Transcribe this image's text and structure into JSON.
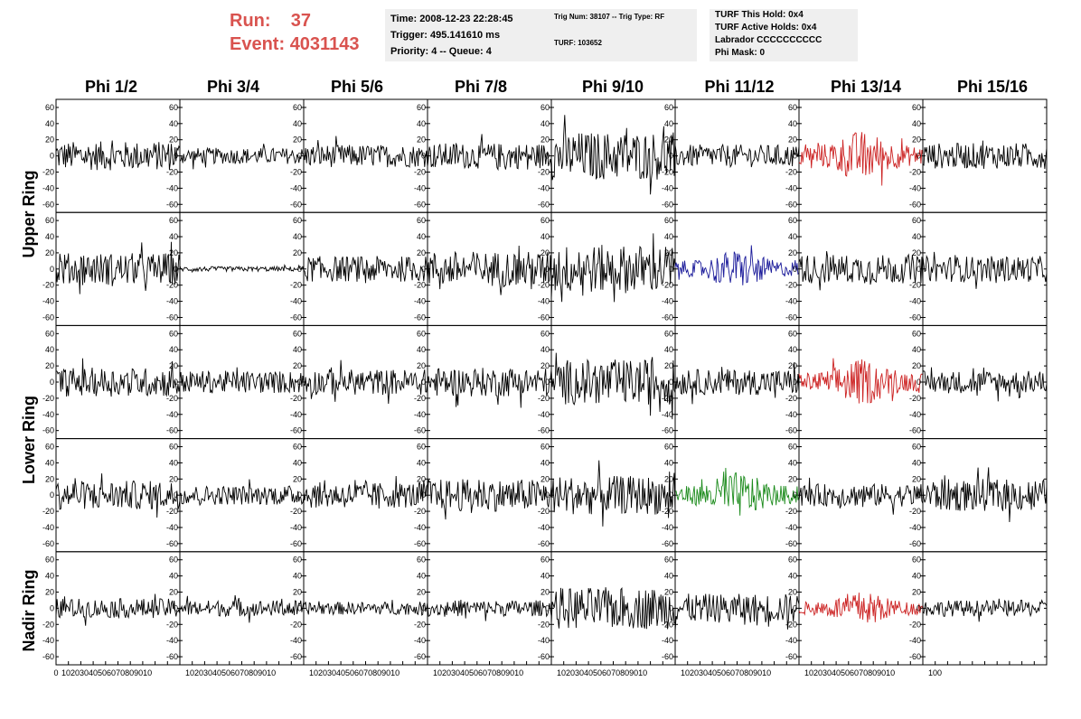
{
  "header": {
    "run_label": "Run:",
    "run_value": "37",
    "event_label": "Event:",
    "event_value": "4031143",
    "time": "Time: 2008-12-23 22:28:45",
    "trigger": "Trigger: 495.141610 ms",
    "priority": "Priority: 4 -- Queue: 4",
    "trig_num": "Trig Num: 38107 -- Trig Type: RF",
    "turf": "TURF: 103652",
    "turf_hold": "TURF This Hold: 0x4",
    "turf_active": "TURF Active Holds: 0x4",
    "labrador": "Labrador CCCCCCCCCC",
    "phi_mask": "Phi Mask: 0"
  },
  "columns": [
    "Phi 1/2",
    "Phi 3/4",
    "Phi 5/6",
    "Phi 7/8",
    "Phi 9/10",
    "Phi 11/12",
    "Phi 13/14",
    "Phi 15/16"
  ],
  "row_labels": [
    "Upper Ring",
    "Lower Ring",
    "Nadir Ring"
  ],
  "y_ticks": [
    "60",
    "40",
    "20",
    "0",
    "-20",
    "-40",
    "-60"
  ],
  "x_axis_labels": [
    "0",
    "10203040506070809010",
    "10203040506070809010",
    "10203040506070809010",
    "10203040506070809010",
    "10203040506070809010",
    "10203040506070809010",
    "10203040506070809010",
    "100"
  ],
  "colors": {
    "title": "#d9534f",
    "trace": "#000000",
    "highlight_red": "#cc2222",
    "highlight_blue": "#1a1a9a",
    "highlight_green": "#1a8a1a",
    "info_bg": "#efefef"
  },
  "chart_data": {
    "type": "line",
    "xlim": [
      0,
      100
    ],
    "ylim": [
      -70,
      70
    ],
    "grid": false,
    "rows": 5,
    "cols": 8,
    "amplitudes": [
      [
        18,
        10,
        14,
        16,
        30,
        14,
        24,
        16
      ],
      [
        20,
        3,
        16,
        22,
        30,
        18,
        18,
        16
      ],
      [
        18,
        14,
        16,
        18,
        28,
        16,
        22,
        14
      ],
      [
        18,
        12,
        16,
        20,
        24,
        22,
        14,
        20
      ],
      [
        12,
        10,
        8,
        10,
        26,
        18,
        16,
        10
      ]
    ],
    "trace_colors": [
      [
        "trace",
        "trace",
        "trace",
        "trace",
        "trace",
        "trace",
        "highlight_red",
        "trace"
      ],
      [
        "trace",
        "trace",
        "trace",
        "trace",
        "trace",
        "highlight_blue",
        "trace",
        "trace"
      ],
      [
        "trace",
        "trace",
        "trace",
        "trace",
        "trace",
        "trace",
        "highlight_red",
        "trace"
      ],
      [
        "trace",
        "trace",
        "trace",
        "trace",
        "trace",
        "highlight_green",
        "trace",
        "trace"
      ],
      [
        "trace",
        "trace",
        "trace",
        "trace",
        "trace",
        "trace",
        "highlight_red",
        "trace"
      ]
    ]
  }
}
